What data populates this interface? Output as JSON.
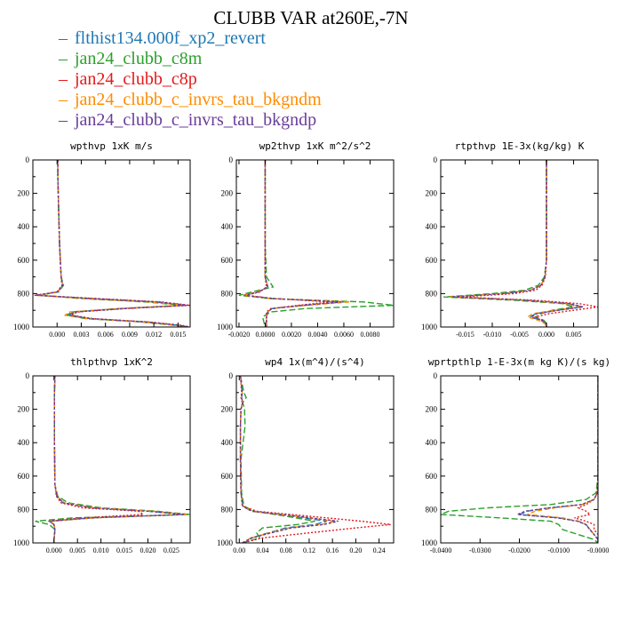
{
  "title": "CLUBB VAR at260E,-7N",
  "legend": [
    {
      "label": "flthist134.000f_xp2_revert",
      "color": "#1f77b4"
    },
    {
      "label": "jan24_clubb_c8m",
      "color": "#2ca02c"
    },
    {
      "label": "jan24_clubb_c8p",
      "color": "#e31a1c"
    },
    {
      "label": "jan24_clubb_c_invrs_tau_bkgndm",
      "color": "#ff8c00"
    },
    {
      "label": "jan24_clubb_c_invrs_tau_bkgndp",
      "color": "#6a3d9a"
    }
  ],
  "chart_data": [
    {
      "type": "line",
      "title": "wpthvp  1xK m/s",
      "xlim": [
        -0.003,
        0.0165
      ],
      "ylim": [
        1000,
        0
      ],
      "y_reversed": true,
      "xticks": [
        "0.000",
        "0.003",
        "0.006",
        "0.009",
        "0.012",
        "0.015"
      ],
      "xtick_values": [
        0,
        0.003,
        0.006,
        0.009,
        0.012,
        0.015
      ],
      "yticks": [
        0,
        200,
        400,
        600,
        800,
        1000
      ],
      "y": [
        0,
        100,
        300,
        500,
        700,
        750,
        790,
        810,
        830,
        850,
        870,
        890,
        910,
        930,
        950,
        970,
        990,
        1000
      ],
      "series": [
        {
          "values": [
            0.0001,
            0.0001,
            0.0002,
            0.0003,
            0.0005,
            0.0007,
            0.0001,
            -0.0025,
            0.004,
            0.012,
            0.016,
            0.008,
            0.002,
            0.0015,
            0.004,
            0.011,
            0.015,
            0.016
          ]
        },
        {
          "values": [
            0.0001,
            0.0001,
            0.0002,
            0.0003,
            0.0005,
            0.0008,
            0.0002,
            -0.0022,
            0.003,
            0.011,
            0.0155,
            0.0075,
            0.0018,
            0.0012,
            0.0035,
            0.0105,
            0.0145,
            0.0155
          ]
        },
        {
          "values": [
            0.0001,
            0.0001,
            0.0002,
            0.0003,
            0.0005,
            0.0006,
            0.0,
            -0.0028,
            0.005,
            0.013,
            0.0165,
            0.0085,
            0.0025,
            0.0018,
            0.0045,
            0.0115,
            0.0155,
            0.0165
          ]
        },
        {
          "values": [
            0.0001,
            0.0001,
            0.0002,
            0.0003,
            0.0005,
            0.0007,
            0.0001,
            -0.0024,
            0.0035,
            0.0115,
            0.0158,
            0.0078,
            0.0015,
            0.001,
            0.0038,
            0.0108,
            0.0148,
            0.0158
          ]
        },
        {
          "values": [
            0.0001,
            0.0001,
            0.0002,
            0.0003,
            0.0005,
            0.0007,
            0.0001,
            -0.0026,
            0.0045,
            0.0125,
            0.0162,
            0.0082,
            0.0022,
            0.0016,
            0.0042,
            0.0112,
            0.0152,
            0.0162
          ]
        }
      ]
    },
    {
      "type": "line",
      "title": "wp2thvp  1xK m^2/s^2",
      "xlim": [
        -0.0022,
        0.0098
      ],
      "ylim": [
        1000,
        0
      ],
      "y_reversed": true,
      "xticks": [
        "-0.0020",
        "0.0000",
        "0.0020",
        "0.0040",
        "0.0060",
        "0.0080"
      ],
      "xtick_values": [
        -0.002,
        0,
        0.002,
        0.004,
        0.006,
        0.008
      ],
      "yticks": [
        0,
        200,
        400,
        600,
        800,
        1000
      ],
      "y": [
        0,
        200,
        500,
        700,
        760,
        790,
        810,
        830,
        850,
        870,
        890,
        910,
        940,
        970,
        1000
      ],
      "series": [
        {
          "values": [
            0.0,
            0.0,
            0.0,
            0.0,
            0.0002,
            -0.0005,
            -0.0016,
            0.0005,
            0.006,
            0.003,
            0.0005,
            0.0002,
            0.0001,
            0.0001,
            0.0001
          ]
        },
        {
          "values": [
            0.0,
            0.0,
            0.0,
            0.0001,
            0.0006,
            -0.001,
            -0.002,
            0.0003,
            0.0075,
            0.0098,
            0.003,
            0.0004,
            -0.0002,
            -0.0001,
            0.0
          ]
        },
        {
          "values": [
            0.0,
            0.0,
            0.0,
            0.0,
            0.0001,
            -0.0004,
            -0.0015,
            0.0007,
            0.005,
            0.0025,
            0.0004,
            0.0001,
            0.0001,
            0.0001,
            0.0001
          ]
        },
        {
          "values": [
            0.0,
            0.0,
            0.0,
            0.0,
            0.0002,
            -0.0006,
            -0.0017,
            0.0004,
            0.0065,
            0.0032,
            0.0005,
            0.0002,
            0.0001,
            0.0001,
            0.0001
          ]
        },
        {
          "values": [
            0.0,
            0.0,
            0.0,
            0.0,
            0.0002,
            -0.0005,
            -0.0016,
            0.0006,
            0.0058,
            0.0029,
            0.0005,
            0.0002,
            0.0001,
            0.0001,
            0.0001
          ]
        }
      ]
    },
    {
      "type": "line",
      "title": "rtpthvp  1E-3x(kg/kg) K",
      "xlim": [
        -0.0195,
        0.0095
      ],
      "ylim": [
        1000,
        0
      ],
      "y_reversed": true,
      "xticks": [
        "-0.015",
        "-0.010",
        "-0.005",
        "0.000",
        "0.005"
      ],
      "xtick_values": [
        -0.015,
        -0.01,
        -0.005,
        0,
        0.005
      ],
      "yticks": [
        0,
        200,
        400,
        600,
        800,
        1000
      ],
      "y": [
        0,
        300,
        600,
        700,
        750,
        780,
        800,
        820,
        840,
        860,
        880,
        900,
        920,
        940,
        960,
        980,
        1000
      ],
      "series": [
        {
          "values": [
            0.0,
            0.0,
            0.0,
            -0.0003,
            -0.001,
            -0.003,
            -0.008,
            -0.018,
            -0.004,
            0.004,
            0.0065,
            0.002,
            -0.002,
            -0.003,
            -0.001,
            0.0,
            0.0
          ]
        },
        {
          "values": [
            0.0,
            0.0,
            0.0,
            -0.0004,
            -0.0015,
            -0.004,
            -0.01,
            -0.019,
            -0.006,
            0.003,
            0.005,
            0.001,
            -0.001,
            -0.002,
            -0.0005,
            0.0,
            0.0
          ]
        },
        {
          "values": [
            0.0,
            0.0,
            0.0,
            -0.0002,
            -0.0008,
            -0.002,
            -0.006,
            -0.016,
            -0.002,
            0.006,
            0.0095,
            0.005,
            0.0005,
            -0.002,
            -0.001,
            0.0,
            0.0
          ]
        },
        {
          "values": [
            0.0,
            0.0,
            0.0,
            -0.0003,
            -0.001,
            -0.003,
            -0.008,
            -0.018,
            -0.004,
            0.0035,
            0.006,
            0.0015,
            -0.0025,
            -0.0035,
            -0.0015,
            -0.0003,
            0.0
          ]
        },
        {
          "values": [
            0.0,
            0.0,
            0.0,
            -0.0003,
            -0.001,
            -0.0028,
            -0.0078,
            -0.0175,
            -0.0038,
            0.0042,
            0.0068,
            0.0022,
            -0.0018,
            -0.0028,
            -0.0008,
            0.0,
            0.0
          ]
        }
      ]
    },
    {
      "type": "line",
      "title": "thlpthvp  1xK^2",
      "xlim": [
        -0.0045,
        0.029
      ],
      "ylim": [
        1000,
        0
      ],
      "y_reversed": true,
      "xticks": [
        "0.000",
        "0.005",
        "0.010",
        "0.015",
        "0.020",
        "0.025"
      ],
      "xtick_values": [
        0,
        0.005,
        0.01,
        0.015,
        0.02,
        0.025
      ],
      "yticks": [
        0,
        200,
        400,
        600,
        800,
        1000
      ],
      "y": [
        0,
        100,
        400,
        650,
        720,
        760,
        790,
        810,
        830,
        850,
        870,
        890,
        920,
        950,
        980,
        1000
      ],
      "series": [
        {
          "values": [
            0.0002,
            0.0001,
            0.0001,
            0.0002,
            0.0006,
            0.002,
            0.008,
            0.02,
            0.028,
            0.008,
            -0.001,
            0.0,
            0.0002,
            0.0001,
            0.0,
            0.0
          ]
        },
        {
          "values": [
            0.0002,
            0.0001,
            0.0001,
            0.0002,
            0.0008,
            0.003,
            0.01,
            0.022,
            0.029,
            0.004,
            -0.004,
            -0.001,
            0.0002,
            0.0001,
            0.0,
            0.0
          ]
        },
        {
          "values": [
            0.0002,
            0.0001,
            0.0001,
            0.0002,
            0.0005,
            0.0015,
            0.006,
            0.018,
            0.019,
            0.006,
            -0.001,
            0.0,
            0.0002,
            0.0001,
            0.0,
            0.0
          ]
        },
        {
          "values": [
            0.0002,
            0.0001,
            0.0001,
            0.0002,
            0.0006,
            0.0022,
            0.0085,
            0.021,
            0.0285,
            0.009,
            -0.0008,
            0.0,
            0.0002,
            0.0001,
            0.0,
            0.0
          ]
        },
        {
          "values": [
            0.0002,
            0.0001,
            0.0001,
            0.0002,
            0.0006,
            0.0019,
            0.0078,
            0.0198,
            0.0278,
            0.0078,
            -0.0009,
            0.0,
            0.0002,
            0.0001,
            0.0,
            0.0
          ]
        }
      ]
    },
    {
      "type": "line",
      "title": "wp4  1x(m^4)/(s^4)",
      "xlim": [
        -0.005,
        0.265
      ],
      "ylim": [
        1000,
        0
      ],
      "y_reversed": true,
      "xticks": [
        "0.00",
        "0.04",
        "0.08",
        "0.12",
        "0.16",
        "0.20",
        "0.24"
      ],
      "xtick_values": [
        0,
        0.04,
        0.08,
        0.12,
        0.16,
        0.2,
        0.24
      ],
      "yticks": [
        0,
        200,
        400,
        600,
        800,
        1000
      ],
      "y": [
        0,
        100,
        130,
        160,
        200,
        300,
        500,
        700,
        780,
        810,
        840,
        870,
        890,
        910,
        940,
        970,
        1000
      ],
      "series": [
        {
          "values": [
            0.002,
            0.005,
            0.004,
            0.006,
            0.003,
            0.002,
            0.002,
            0.003,
            0.006,
            0.02,
            0.09,
            0.15,
            0.13,
            0.08,
            0.05,
            0.02,
            0.005
          ]
        },
        {
          "values": [
            0.002,
            0.008,
            0.012,
            0.006,
            0.009,
            0.01,
            0.003,
            0.004,
            0.008,
            0.025,
            0.08,
            0.13,
            0.1,
            0.04,
            0.03,
            0.035,
            0.005
          ]
        },
        {
          "values": [
            0.002,
            0.004,
            0.003,
            0.005,
            0.003,
            0.002,
            0.002,
            0.003,
            0.005,
            0.03,
            0.12,
            0.21,
            0.26,
            0.2,
            0.12,
            0.04,
            0.005
          ]
        },
        {
          "values": [
            0.002,
            0.005,
            0.004,
            0.006,
            0.003,
            0.002,
            0.002,
            0.003,
            0.006,
            0.021,
            0.095,
            0.165,
            0.14,
            0.085,
            0.052,
            0.02,
            0.005
          ]
        },
        {
          "values": [
            0.002,
            0.005,
            0.004,
            0.006,
            0.003,
            0.002,
            0.002,
            0.003,
            0.006,
            0.022,
            0.1,
            0.17,
            0.145,
            0.09,
            0.055,
            0.022,
            0.005
          ]
        }
      ]
    },
    {
      "type": "line",
      "title": "wprtpthlp  1-E-3x(m kg K)/(s kg)",
      "xlim": [
        -0.04,
        0.0
      ],
      "ylim": [
        1000,
        0
      ],
      "y_reversed": true,
      "xticks": [
        "-0.0400",
        "-0.0300",
        "-0.0200",
        "-0.0100",
        "-0.0000"
      ],
      "xtick_values": [
        -0.04,
        -0.03,
        -0.02,
        -0.01,
        0
      ],
      "yticks": [
        0,
        200,
        400,
        600,
        800,
        1000
      ],
      "y": [
        0,
        300,
        600,
        700,
        740,
        770,
        790,
        810,
        830,
        850,
        870,
        890,
        920,
        950,
        980,
        1000
      ],
      "series": [
        {
          "values": [
            0.0,
            0.0,
            0.0,
            -0.0002,
            -0.001,
            -0.004,
            -0.012,
            -0.018,
            -0.02,
            -0.01,
            -0.005,
            -0.003,
            -0.002,
            -0.001,
            0.0,
            0.0
          ]
        },
        {
          "values": [
            0.0,
            0.0,
            0.0,
            -0.0005,
            -0.003,
            -0.012,
            -0.028,
            -0.038,
            -0.04,
            -0.025,
            -0.012,
            -0.01,
            -0.009,
            -0.005,
            -0.001,
            0.0
          ]
        },
        {
          "values": [
            0.0,
            0.0,
            0.0,
            -0.0002,
            -0.001,
            -0.003,
            -0.005,
            -0.003,
            -0.002,
            -0.006,
            -0.003,
            -0.001,
            -0.001,
            0.0,
            0.0,
            0.0
          ]
        },
        {
          "values": [
            0.0,
            0.0,
            0.0,
            -0.0002,
            -0.001,
            -0.004,
            -0.011,
            -0.016,
            -0.018,
            -0.009,
            -0.005,
            -0.003,
            -0.002,
            -0.001,
            0.0,
            0.0
          ]
        },
        {
          "values": [
            0.0,
            0.0,
            0.0,
            -0.0002,
            -0.001,
            -0.0042,
            -0.0125,
            -0.0185,
            -0.0205,
            -0.0105,
            -0.0052,
            -0.0031,
            -0.0021,
            -0.001,
            0.0,
            0.0
          ]
        }
      ]
    }
  ]
}
